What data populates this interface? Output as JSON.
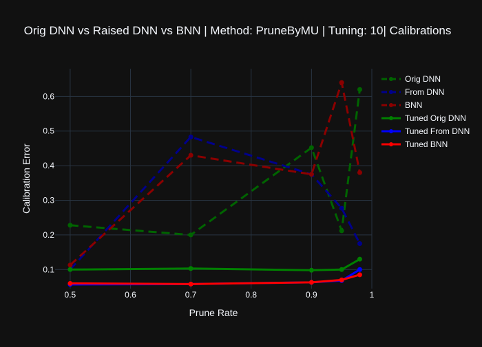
{
  "chart_data": {
    "type": "line",
    "title": "Orig DNN vs Raised DNN vs BNN | Method: PruneByMU | Tuning: 10| Calibrations",
    "xlabel": "Prune Rate",
    "ylabel": "Calibration Error",
    "xlim": [
      0.475,
      1.0
    ],
    "ylim": [
      0.045,
      0.68
    ],
    "xticks": [
      0.5,
      0.6,
      0.7,
      0.8,
      0.9,
      1.0
    ],
    "xtick_labels": [
      "0.5",
      "0.6",
      "0.7",
      "0.8",
      "0.9",
      "1"
    ],
    "yticks": [
      0.1,
      0.2,
      0.3,
      0.4,
      0.5,
      0.6
    ],
    "ytick_labels": [
      "0.1",
      "0.2",
      "0.3",
      "0.4",
      "0.5",
      "0.6"
    ],
    "grid": true,
    "legend_position": "right",
    "x": [
      0.5,
      0.7,
      0.9,
      0.95,
      0.98
    ],
    "series": [
      {
        "name": "Orig DNN",
        "color": "#006400",
        "dash": "dash",
        "values": [
          0.228,
          0.2,
          0.452,
          0.212,
          0.62
        ]
      },
      {
        "name": "From DNN",
        "color": "#00008b",
        "dash": "dash",
        "values": [
          0.1,
          0.483,
          0.375,
          0.277,
          0.175
        ]
      },
      {
        "name": "BNN",
        "color": "#8b0000",
        "dash": "dash",
        "values": [
          0.113,
          0.43,
          0.375,
          0.64,
          0.38
        ]
      },
      {
        "name": "Tuned Orig DNN",
        "color": "#008000",
        "dash": "solid",
        "values": [
          0.1,
          0.103,
          0.098,
          0.1,
          0.13
        ]
      },
      {
        "name": "Tuned From DNN",
        "color": "#0000ff",
        "dash": "solid",
        "values": [
          0.057,
          0.058,
          0.063,
          0.068,
          0.1
        ]
      },
      {
        "name": "Tuned BNN",
        "color": "#ff0000",
        "dash": "solid",
        "values": [
          0.06,
          0.058,
          0.063,
          0.07,
          0.085
        ]
      }
    ]
  },
  "colors": {
    "background": "#111111",
    "grid": "#283442",
    "text": "#f2f5fa",
    "tick_text": "#f2f5fa"
  }
}
